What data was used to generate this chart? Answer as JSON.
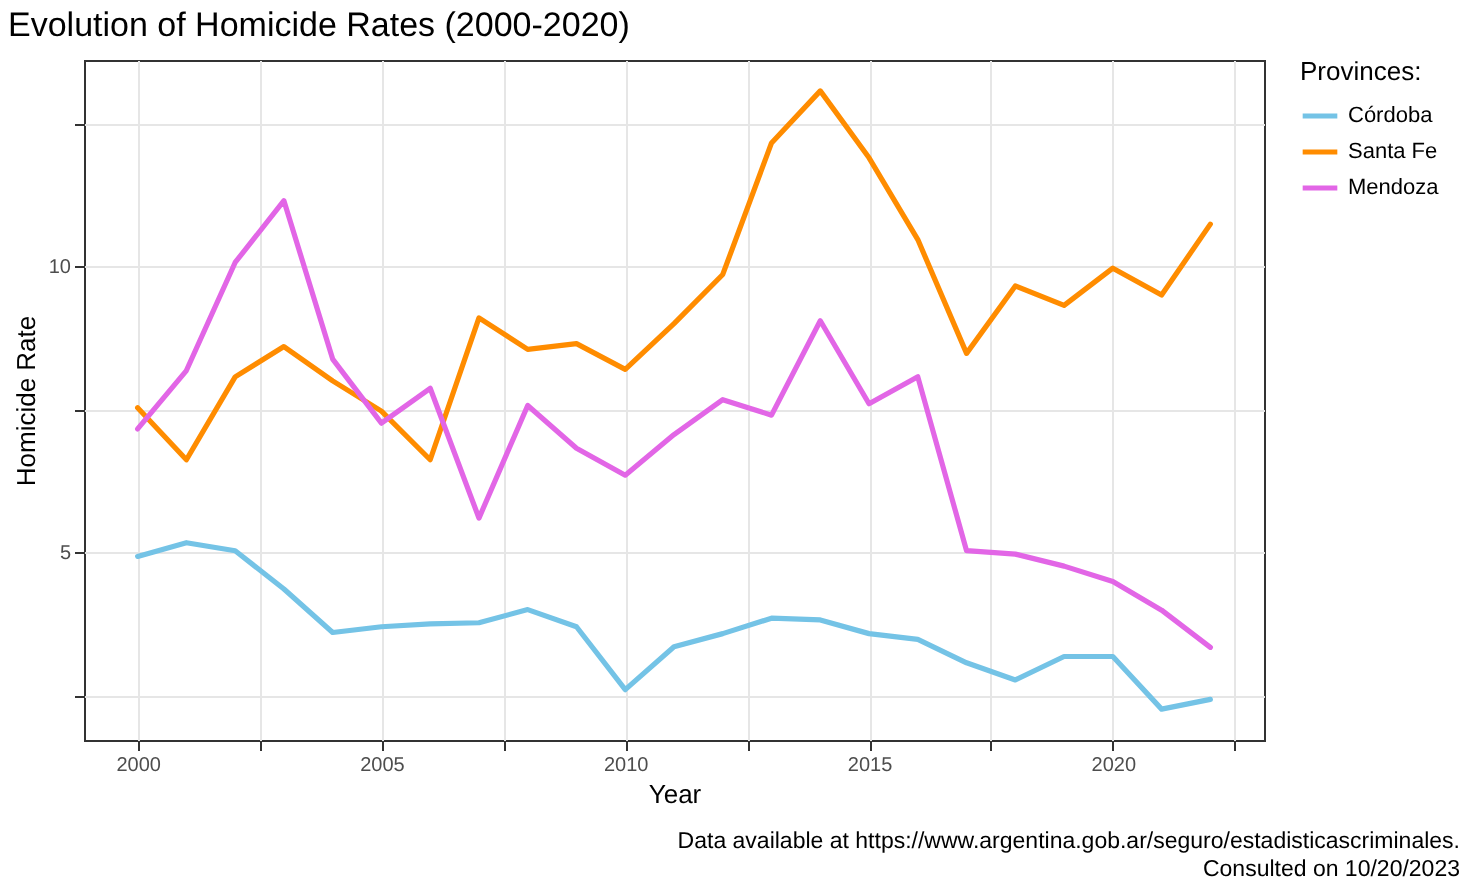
{
  "chart_data": {
    "type": "line",
    "title": "Evolution of Homicide Rates (2000-2020)",
    "xlabel": "Year",
    "ylabel": "Homicide Rate",
    "legend_title": "Provinces:",
    "x": [
      2000,
      2001,
      2002,
      2003,
      2004,
      2005,
      2006,
      2007,
      2008,
      2009,
      2010,
      2011,
      2012,
      2013,
      2014,
      2015,
      2016,
      2017,
      2018,
      2019,
      2020,
      2021,
      2022
    ],
    "series": [
      {
        "name": "Córdoba",
        "color": "#74c3e6",
        "values": [
          4.93,
          5.17,
          5.03,
          4.36,
          3.6,
          3.7,
          3.75,
          3.77,
          4.0,
          3.7,
          2.6,
          3.35,
          3.58,
          3.85,
          3.82,
          3.58,
          3.48,
          3.07,
          2.77,
          3.18,
          3.18,
          2.26,
          2.43
        ]
      },
      {
        "name": "Santa Fe",
        "color": "#ff8c00",
        "values": [
          7.53,
          6.62,
          8.07,
          8.6,
          8.0,
          7.47,
          6.62,
          9.1,
          8.55,
          8.65,
          8.2,
          9.0,
          9.86,
          12.16,
          13.07,
          11.9,
          10.47,
          8.48,
          9.66,
          9.32,
          9.97,
          9.5,
          10.74
        ]
      },
      {
        "name": "Mendoza",
        "color": "#e266e6",
        "values": [
          7.16,
          8.18,
          10.07,
          11.15,
          8.38,
          7.26,
          7.87,
          5.6,
          7.57,
          6.82,
          6.35,
          7.06,
          7.67,
          7.4,
          9.05,
          7.6,
          8.07,
          5.03,
          4.97,
          4.76,
          4.49,
          3.99,
          3.34
        ]
      }
    ],
    "xlim": [
      1998.9,
      2023.1
    ],
    "xticks": [
      2000,
      {
        "value": 2002.5,
        "label": null
      },
      2005,
      {
        "value": 2007.5,
        "label": null
      },
      2010,
      {
        "value": 2012.5,
        "label": null
      },
      2015,
      {
        "value": 2017.5,
        "label": null
      },
      2020,
      {
        "value": 2022.5,
        "label": null
      }
    ],
    "ylim": [
      1.72,
      13.61
    ],
    "yticks": [
      {
        "value": 2.5,
        "label": null
      },
      5,
      {
        "value": 7.5,
        "label": null
      },
      10,
      {
        "value": 12.5,
        "label": null
      }
    ],
    "grid": true,
    "legend": "right",
    "line_style": "solid",
    "annotations": [
      "Data available at https://www.argentina.gob.ar/seguro/estadisticascriminales.",
      "Consulted on 10/20/2023"
    ]
  }
}
